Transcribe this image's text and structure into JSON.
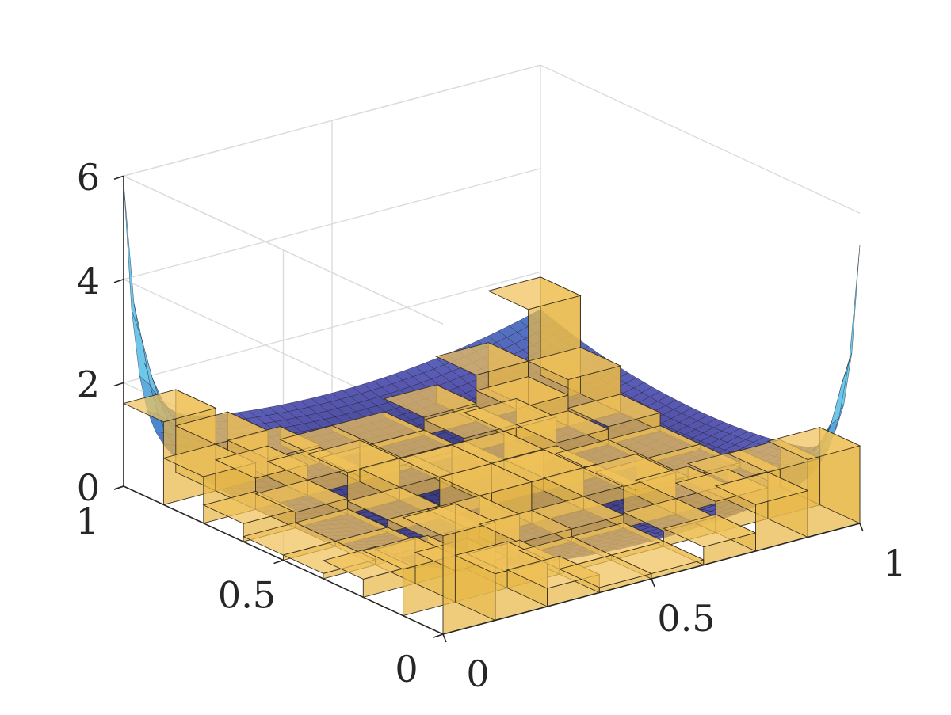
{
  "chart_data": {
    "type": "surface",
    "title": "",
    "xlabel": "",
    "ylabel": "",
    "zlabel": "",
    "xlim": [
      0,
      1
    ],
    "ylim": [
      0,
      1
    ],
    "zlim": [
      0,
      6
    ],
    "grid": true,
    "x_ticks": [
      {
        "value": 0,
        "label": "0"
      },
      {
        "value": 0.5,
        "label": "0.5"
      },
      {
        "value": 1,
        "label": "1"
      }
    ],
    "y_ticks": [
      {
        "value": 0,
        "label": "0"
      },
      {
        "value": 0.5,
        "label": "0.5"
      },
      {
        "value": 1,
        "label": "1"
      }
    ],
    "z_ticks": [
      {
        "value": 0,
        "label": "0"
      },
      {
        "value": 2,
        "label": "2"
      },
      {
        "value": 4,
        "label": "4"
      },
      {
        "value": 6,
        "label": "6"
      }
    ],
    "surface": {
      "name": "",
      "grid_n": 40,
      "peak_corners": [
        {
          "x": 0,
          "y": 1,
          "z": 6
        },
        {
          "x": 1,
          "y": 0,
          "z": 5.5
        }
      ],
      "colormap": [
        "#2a2a6a",
        "#5a5ab4",
        "#4a8ad0",
        "#6ec6e8"
      ]
    },
    "bars": {
      "name": "",
      "color": "#e8b84a",
      "edge_color": "#3a3020",
      "opacity": 0.72,
      "bins_per_axis": 8,
      "heights": [
        [
          1.9,
          0.9,
          0.35,
          0.1,
          0.1,
          0.35,
          0.9,
          1.5
        ],
        [
          0.9,
          0.6,
          0.3,
          0.1,
          0.1,
          0.3,
          0.6,
          0.9
        ],
        [
          0.35,
          0.3,
          0.8,
          0.25,
          0.25,
          0.8,
          0.3,
          0.35
        ],
        [
          0.1,
          0.1,
          0.25,
          0.8,
          0.8,
          0.25,
          0.1,
          0.1
        ],
        [
          0.1,
          0.1,
          0.25,
          0.8,
          0.8,
          0.25,
          0.1,
          0.1
        ],
        [
          0.35,
          0.3,
          0.8,
          0.25,
          0.25,
          0.8,
          0.3,
          0.35
        ],
        [
          0.9,
          0.6,
          0.3,
          0.1,
          0.1,
          0.3,
          0.6,
          0.9
        ],
        [
          1.6,
          0.9,
          0.35,
          0.1,
          0.1,
          0.35,
          0.9,
          1.9
        ]
      ]
    },
    "colors": {
      "bar_face": "#e8b84a",
      "surface_low": "#2a2a6a",
      "surface_high": "#6ec6e8",
      "grid": "#dcdcdc",
      "axis": "#262626"
    }
  }
}
